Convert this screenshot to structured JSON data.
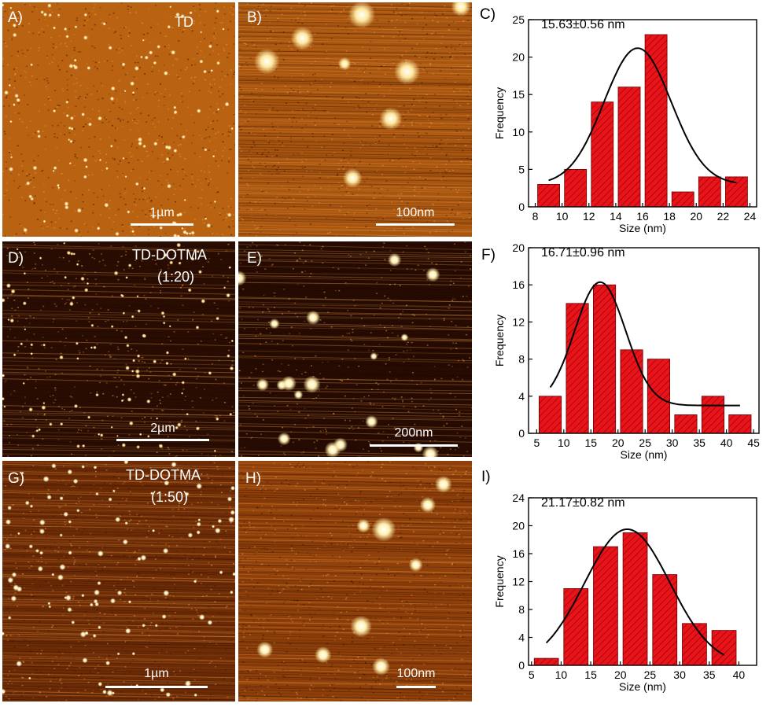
{
  "panels": {
    "A": {
      "label": "A)",
      "title": "TD",
      "scale": "1µm"
    },
    "B": {
      "label": "B)",
      "scale": "100nm"
    },
    "C": {
      "label": "C)"
    },
    "D": {
      "label": "D)",
      "title": "TD-DOTMA",
      "subtitle": "(1:20)",
      "scale": "2µm"
    },
    "E": {
      "label": "E)",
      "scale": "200nm"
    },
    "F": {
      "label": "F)"
    },
    "G": {
      "label": "G)",
      "title": "TD-DOTMA",
      "subtitle": "(1:50)",
      "scale": "1µm"
    },
    "H": {
      "label": "H)",
      "scale": "100nm"
    },
    "I": {
      "label": "I)"
    }
  },
  "colors": {
    "bar": "#e8141a",
    "afm_light": "#c8741c",
    "afm_dark": "#2a0d02",
    "fit": "#000000"
  },
  "chart_data": [
    {
      "type": "bar",
      "annotation": "15.63±0.56 nm",
      "xlabel": "Size (nm)",
      "ylabel": "Frequency",
      "xlim": [
        7.5,
        24.5
      ],
      "ylim": [
        0,
        25
      ],
      "xticks": [
        8,
        10,
        12,
        14,
        16,
        18,
        20,
        22,
        24
      ],
      "yticks": [
        0,
        5,
        10,
        15,
        20,
        25
      ],
      "bin_width": 2,
      "x": [
        9,
        11,
        13,
        15,
        17,
        19,
        21,
        23
      ],
      "values": [
        3,
        5,
        14,
        16,
        23,
        2,
        4,
        4
      ],
      "fit": {
        "type": "gaussian",
        "center": 15.63,
        "peak": 21.2,
        "sigma": 2.5,
        "baseline": 3.0,
        "range": [
          9,
          23
        ]
      }
    },
    {
      "type": "bar",
      "annotation": "16.71±0.96 nm",
      "xlabel": "Size (nm)",
      "ylabel": "Frequency",
      "xlim": [
        3.5,
        46
      ],
      "ylim": [
        0,
        20
      ],
      "xticks": [
        5,
        10,
        15,
        20,
        25,
        30,
        35,
        40,
        45
      ],
      "yticks": [
        0,
        4,
        8,
        12,
        16,
        20
      ],
      "bin_width": 5,
      "x": [
        7.5,
        12.5,
        17.5,
        22.5,
        27.5,
        32.5,
        37.5,
        42.5
      ],
      "values": [
        4,
        14,
        16,
        9,
        8,
        2,
        4,
        2
      ],
      "fit": {
        "type": "gaussian",
        "center": 16.71,
        "peak": 16.3,
        "sigma": 4.7,
        "baseline": 3.0,
        "range": [
          7.5,
          42.5
        ]
      }
    },
    {
      "type": "bar",
      "annotation": "21.17±0.82 nm",
      "xlabel": "Size (nm)",
      "ylabel": "Frequency",
      "xlim": [
        4.5,
        43
      ],
      "ylim": [
        0,
        24
      ],
      "xticks": [
        5,
        10,
        15,
        20,
        25,
        30,
        35,
        40
      ],
      "yticks": [
        0,
        4,
        8,
        12,
        16,
        20,
        24
      ],
      "bin_width": 5,
      "x": [
        7.5,
        12.5,
        17.5,
        22.5,
        27.5,
        32.5,
        37.5
      ],
      "values": [
        1,
        11,
        17,
        19,
        13,
        6,
        5
      ],
      "fit": {
        "type": "gaussian",
        "center": 21.17,
        "peak": 19.5,
        "sigma": 7.2,
        "baseline": 0.0,
        "range": [
          7.5,
          37.5
        ]
      }
    }
  ]
}
